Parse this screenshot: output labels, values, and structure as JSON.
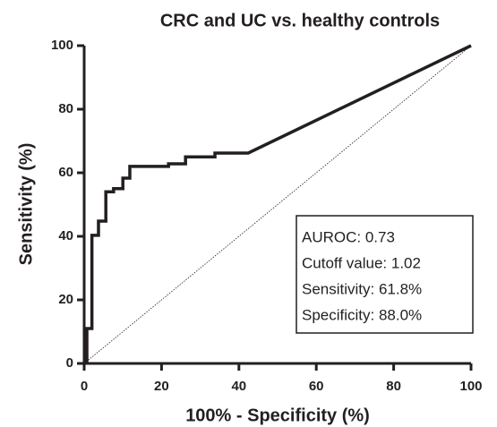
{
  "chart_data": {
    "type": "line",
    "title": "CRC and UC vs. healthy controls",
    "x_label": "100% - Specificity (%)",
    "y_label": "Sensitivity (%)",
    "x": [
      0.7,
      0.7,
      2,
      2,
      3.7,
      3.7,
      5.6,
      5.6,
      7.6,
      7.6,
      10,
      10,
      11.8,
      11.8,
      21.8,
      21.8,
      26.2,
      26.2,
      33.8,
      33.8,
      42.4,
      100
    ],
    "values": [
      0,
      11,
      11,
      40.3,
      40.3,
      44.8,
      44.8,
      54,
      54,
      55,
      55,
      58.3,
      58.3,
      62,
      62,
      62.8,
      62.8,
      65,
      65,
      66.2,
      66.2,
      100
    ],
    "color": "#231f20",
    "xlim": [
      0,
      100
    ],
    "xticks": [
      0,
      20,
      40,
      60,
      80,
      100
    ],
    "ylim": [
      0,
      100
    ],
    "yticks": [
      0,
      20,
      40,
      60,
      80,
      100
    ],
    "grid": false,
    "annotations": [
      "AUROC: 0.73",
      "Cutoff value: 1.02",
      "Sensitivity: 61.8%",
      "Specificity: 88.0%"
    ]
  }
}
